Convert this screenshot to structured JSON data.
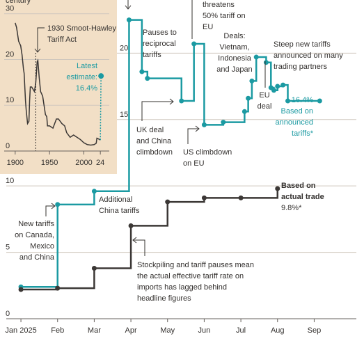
{
  "chart_data": [
    {
      "type": "line",
      "xticks": [
        {
          "value": 0,
          "label": "Jan 2025"
        },
        {
          "value": 1,
          "label": "Feb"
        },
        {
          "value": 2,
          "label": "Mar"
        },
        {
          "value": 3,
          "label": "Apr"
        },
        {
          "value": 4,
          "label": "May"
        },
        {
          "value": 5,
          "label": "Jun"
        },
        {
          "value": 6,
          "label": "Jul"
        },
        {
          "value": 7,
          "label": "Aug"
        },
        {
          "value": 8,
          "label": "Sep"
        }
      ],
      "xlim": [
        -0.4,
        9.15
      ],
      "ylim": [
        0,
        24
      ],
      "yticks": [
        0,
        5,
        10,
        15,
        20
      ],
      "grid": true,
      "step": true,
      "series": [
        {
          "color": "#1b9aa2",
          "x": [
            0,
            1,
            2,
            2.95,
            3.3,
            3.45,
            4.38,
            4.72,
            5.0,
            5.52,
            6.1,
            6.2,
            6.3,
            6.42,
            6.69,
            6.82,
            6.9,
            7.0,
            7.15,
            7.28,
            8.15
          ],
          "values": [
            2.4,
            8.6,
            9.6,
            22.5,
            18.6,
            18.1,
            16.4,
            20.7,
            14.6,
            14.8,
            15.6,
            16.6,
            17.9,
            19.7,
            19.3,
            17.4,
            17.2,
            17.5,
            17.6,
            16.4,
            16.4
          ]
        },
        {
          "color": "#3b3735",
          "x": [
            0,
            1,
            2,
            3,
            4,
            5,
            6,
            7
          ],
          "values": [
            2.2,
            2.3,
            3.8,
            7.0,
            8.8,
            9.1,
            9.1,
            9.8
          ]
        }
      ],
      "annotations": [
        {
          "lines": [
            "threatens",
            "50% tariff on",
            "EU"
          ]
        },
        {
          "lines": [
            "Pauses to",
            "reciprocal",
            "tariffs"
          ]
        },
        {
          "lines": [
            "Deals:",
            "Vietnam,",
            "Indonesia",
            "and Japan"
          ]
        },
        {
          "lines": [
            "Steep new tariffs",
            "announced on many",
            "trading partners"
          ]
        },
        {
          "lines": [
            "EU",
            "deal"
          ]
        },
        {
          "lines": [
            "16.4%",
            "Based on",
            "announced",
            "tariffs*"
          ]
        },
        {
          "lines": [
            "UK deal",
            "and China",
            "climbdown"
          ]
        },
        {
          "lines": [
            "US climbdown",
            "on EU"
          ]
        },
        {
          "lines": [
            "Additional",
            "China tariffs"
          ]
        },
        {
          "lines": [
            "New tariffs",
            "on Canada,",
            "Mexico",
            "and China"
          ]
        },
        {
          "lines": [
            "Stockpiling and tariff pauses mean",
            "the actual effective tariff rate on",
            "imports has lagged behind",
            "headline figures"
          ]
        },
        {
          "lines": [
            "Based on",
            "actual trade",
            "9.8%*"
          ]
        }
      ]
    },
    {
      "type": "line",
      "ylabel": "century",
      "xlim": [
        1887,
        2037
      ],
      "ylim": [
        0,
        33
      ],
      "xticks": [
        1900,
        1950,
        2000,
        {
          "value": 2024,
          "label": "24"
        }
      ],
      "yticks": [
        0,
        10,
        20,
        30
      ],
      "grid": true,
      "series": [
        {
          "color": "#3b3735",
          "x": [
            1900,
            1902,
            1905,
            1908,
            1910,
            1912,
            1913,
            1915,
            1916,
            1918,
            1920,
            1921,
            1922,
            1924,
            1926,
            1928,
            1930,
            1932,
            1933,
            1935,
            1937,
            1940,
            1944,
            1946,
            1947,
            1950,
            1955,
            1960,
            1963,
            1968,
            1972,
            1975,
            1980,
            1985,
            1990,
            1995,
            2000,
            2005,
            2010,
            2015,
            2018,
            2019,
            2022,
            2024
          ],
          "values": [
            28,
            27,
            24,
            23,
            21,
            18,
            17,
            11,
            9,
            6,
            6.5,
            11,
            14,
            14,
            13.5,
            13,
            15,
            19.5,
            19.8,
            16,
            13,
            12,
            8,
            7.5,
            5.5,
            5.5,
            5,
            7,
            7,
            6,
            5.5,
            4,
            3,
            3.5,
            3,
            2.5,
            1.8,
            1.4,
            1.3,
            1.4,
            1.7,
            2.8,
            2.6,
            2.4
          ]
        },
        {
          "color": "#1b9aa2",
          "dashed": true,
          "x": [
            2024,
            2025
          ],
          "values": [
            2.4,
            16.4
          ]
        }
      ],
      "annotations": [
        {
          "lines": [
            "1930 Smoot-Hawley",
            "Tariff Act"
          ]
        },
        {
          "lines": [
            "Latest",
            "estimate:",
            "16.4%"
          ]
        }
      ]
    }
  ]
}
